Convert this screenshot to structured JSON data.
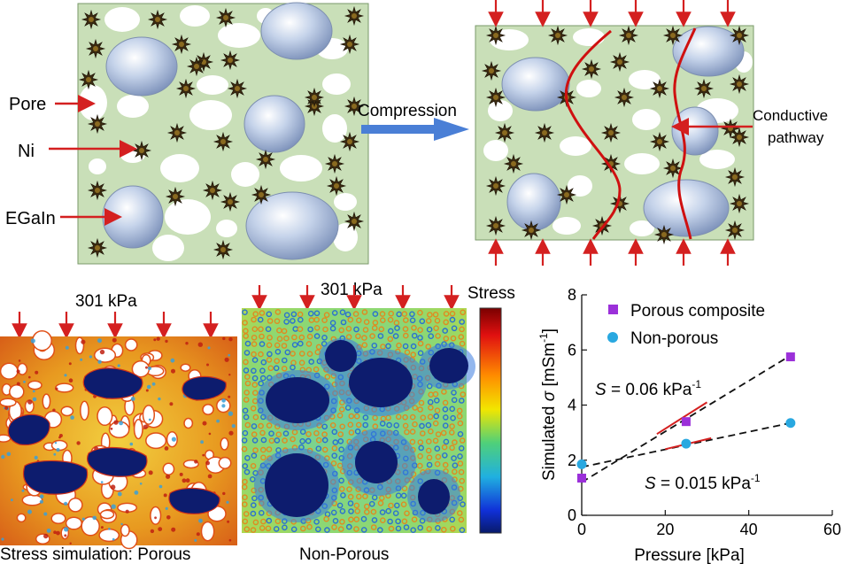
{
  "top": {
    "labels": {
      "pore": "Pore",
      "ni": "Ni",
      "egain": "EGaIn"
    },
    "arrow_text": "Compression",
    "pathway_line1": "Conductive",
    "pathway_line2": "pathway"
  },
  "bottom": {
    "porous_pressure": "301 kPa",
    "nonporous_pressure": "301 kPa",
    "stress_label": "Stress",
    "porous_caption": "Stress simulation: Porous",
    "nonporous_caption": "Non-Porous"
  },
  "colors": {
    "matrix": "#c9dfb8",
    "arrow_red": "#d42020",
    "compress_blue": "#4a7fd6",
    "droplet_dark": "#0d1c6e",
    "porous_marker": "#9b30d9",
    "nonporous_marker": "#29a8e0"
  },
  "chart_data": {
    "type": "scatter",
    "xlabel": "Pressure [kPa]",
    "ylabel_main": "Simulated ",
    "ylabel_sigma": "σ",
    "ylabel_units": " [mSm",
    "ylabel_sup": "-1",
    "ylabel_close": "]",
    "xlim": [
      0,
      60
    ],
    "ylim": [
      0,
      8
    ],
    "xticks": [
      "0",
      "20",
      "40",
      "60"
    ],
    "yticks": [
      "0",
      "2",
      "4",
      "6",
      "8"
    ],
    "legend_position": "top",
    "series": [
      {
        "name": "Porous composite",
        "marker": "square",
        "x": [
          0,
          25,
          50
        ],
        "y": [
          1.35,
          3.4,
          5.75
        ]
      },
      {
        "name": "Non-porous",
        "marker": "circle",
        "x": [
          0,
          25,
          50
        ],
        "y": [
          1.85,
          2.6,
          3.35
        ]
      }
    ],
    "fit_lines": [
      {
        "x": [
          0,
          50
        ],
        "y": [
          1.2,
          5.8
        ]
      },
      {
        "x": [
          0,
          50
        ],
        "y": [
          1.75,
          3.35
        ]
      }
    ],
    "slope_segments": [
      {
        "x": [
          18,
          30
        ],
        "y": [
          2.95,
          4.1
        ]
      },
      {
        "x": [
          20,
          31
        ],
        "y": [
          2.4,
          2.8
        ]
      }
    ],
    "annotations": [
      {
        "italic": "S",
        "text": " = 0.06 kPa",
        "sup": "-1"
      },
      {
        "italic": "S",
        "text": " = 0.015 kPa",
        "sup": "-1"
      }
    ]
  }
}
